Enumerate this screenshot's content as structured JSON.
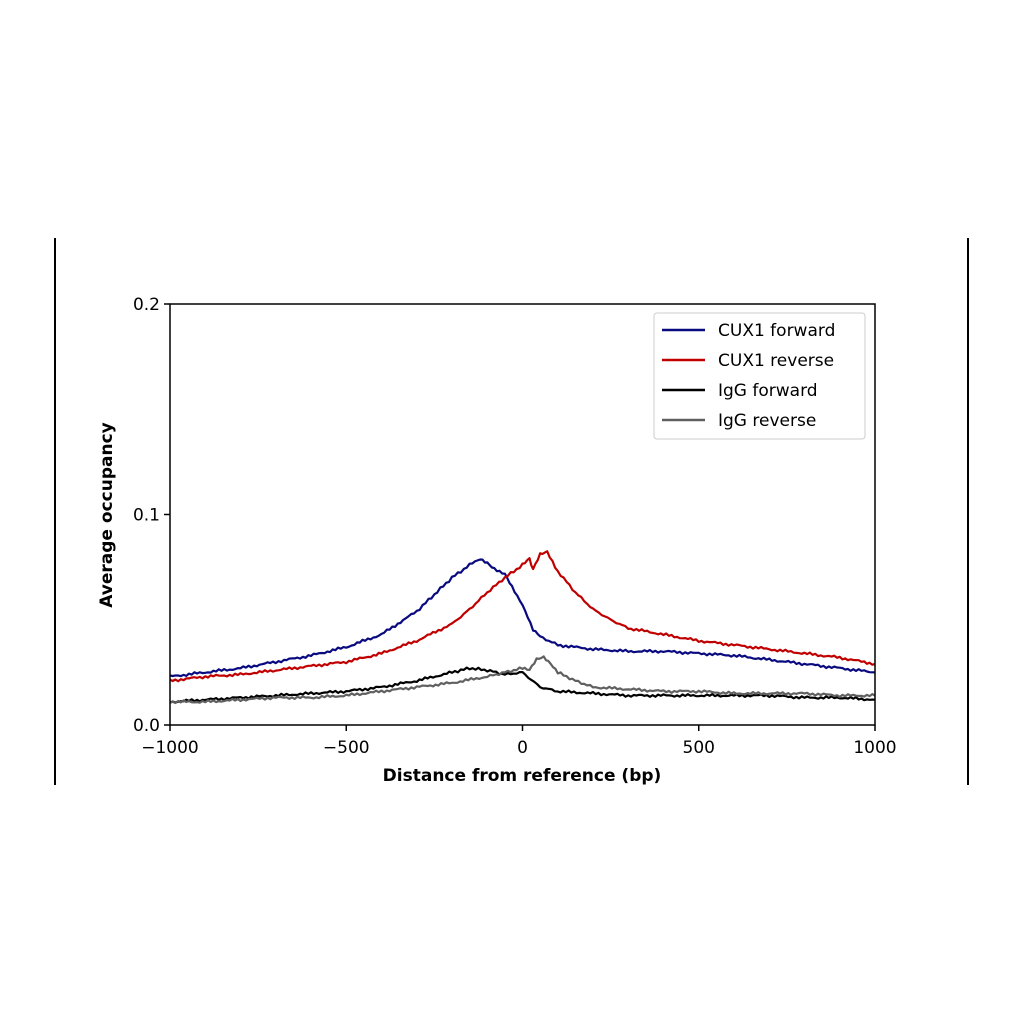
{
  "chart_data": {
    "type": "line",
    "title": "",
    "xlabel": "Distance from reference (bp)",
    "ylabel": "Average occupancy",
    "xlim": [
      -1000,
      1000
    ],
    "ylim": [
      0,
      0.2
    ],
    "xticks": [
      {
        "value": -1000,
        "label": "−1000"
      },
      {
        "value": -500,
        "label": "−500"
      },
      {
        "value": 0,
        "label": "0"
      },
      {
        "value": 500,
        "label": "500"
      },
      {
        "value": 1000,
        "label": "1000"
      }
    ],
    "yticks": [
      {
        "value": 0,
        "label": "0.0"
      },
      {
        "value": 0.1,
        "label": "0.1"
      },
      {
        "value": 0.2,
        "label": "0.2"
      }
    ],
    "grid": false,
    "legend_position": "top-right",
    "series": [
      {
        "name": "CUX1 forward",
        "color": "#0a0a80",
        "x": [
          -1000,
          -900,
          -800,
          -700,
          -600,
          -500,
          -400,
          -300,
          -250,
          -200,
          -150,
          -120,
          -100,
          -80,
          -50,
          -30,
          0,
          30,
          50,
          100,
          200,
          300,
          400,
          500,
          600,
          700,
          800,
          900,
          1000
        ],
        "y": [
          0.023,
          0.025,
          0.027,
          0.03,
          0.033,
          0.037,
          0.043,
          0.054,
          0.062,
          0.07,
          0.076,
          0.079,
          0.077,
          0.074,
          0.072,
          0.066,
          0.057,
          0.045,
          0.042,
          0.038,
          0.036,
          0.035,
          0.035,
          0.034,
          0.033,
          0.031,
          0.029,
          0.027,
          0.025
        ]
      },
      {
        "name": "CUX1 reverse",
        "color": "#c00000",
        "x": [
          -1000,
          -900,
          -800,
          -700,
          -600,
          -500,
          -400,
          -300,
          -200,
          -150,
          -100,
          -50,
          0,
          20,
          30,
          50,
          70,
          100,
          150,
          200,
          250,
          300,
          400,
          500,
          600,
          700,
          800,
          900,
          1000
        ],
        "y": [
          0.021,
          0.023,
          0.024,
          0.026,
          0.028,
          0.03,
          0.034,
          0.04,
          0.048,
          0.055,
          0.063,
          0.07,
          0.076,
          0.079,
          0.074,
          0.081,
          0.082,
          0.073,
          0.063,
          0.055,
          0.05,
          0.046,
          0.043,
          0.04,
          0.038,
          0.036,
          0.034,
          0.032,
          0.029
        ]
      },
      {
        "name": "IgG forward",
        "color": "#000000",
        "x": [
          -1000,
          -900,
          -800,
          -700,
          -600,
          -500,
          -400,
          -300,
          -200,
          -150,
          -100,
          -50,
          0,
          50,
          100,
          200,
          300,
          400,
          500,
          600,
          700,
          800,
          900,
          1000
        ],
        "y": [
          0.011,
          0.012,
          0.013,
          0.014,
          0.015,
          0.016,
          0.018,
          0.021,
          0.025,
          0.027,
          0.026,
          0.024,
          0.025,
          0.018,
          0.016,
          0.015,
          0.014,
          0.014,
          0.014,
          0.014,
          0.014,
          0.013,
          0.013,
          0.012
        ]
      },
      {
        "name": "IgG reverse",
        "color": "#606060",
        "x": [
          -1000,
          -900,
          -800,
          -700,
          -600,
          -500,
          -400,
          -300,
          -200,
          -100,
          -50,
          0,
          20,
          40,
          60,
          80,
          100,
          150,
          200,
          300,
          400,
          500,
          600,
          700,
          800,
          900,
          1000
        ],
        "y": [
          0.011,
          0.011,
          0.012,
          0.013,
          0.013,
          0.014,
          0.016,
          0.018,
          0.02,
          0.023,
          0.025,
          0.027,
          0.026,
          0.031,
          0.032,
          0.029,
          0.025,
          0.021,
          0.018,
          0.017,
          0.016,
          0.016,
          0.015,
          0.015,
          0.015,
          0.014,
          0.014
        ]
      }
    ]
  }
}
